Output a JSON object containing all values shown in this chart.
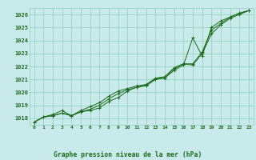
{
  "title": "Graphe pression niveau de la mer (hPa)",
  "x_values": [
    0,
    1,
    2,
    3,
    4,
    5,
    6,
    7,
    8,
    9,
    10,
    11,
    12,
    13,
    14,
    15,
    16,
    17,
    18,
    19,
    20,
    21,
    22,
    23
  ],
  "series": [
    [
      1017.7,
      1018.1,
      1018.2,
      1018.4,
      1018.2,
      1018.5,
      1018.6,
      1018.8,
      1019.3,
      1019.6,
      1020.1,
      1020.4,
      1020.5,
      1021.0,
      1021.1,
      1021.7,
      1022.1,
      1024.2,
      1022.8,
      1025.0,
      1025.5,
      1025.8,
      1026.1,
      1026.3
    ],
    [
      1017.7,
      1018.1,
      1018.2,
      1018.4,
      1018.2,
      1018.5,
      1018.7,
      1019.0,
      1019.5,
      1019.9,
      1020.2,
      1020.4,
      1020.6,
      1021.0,
      1021.2,
      1021.8,
      1022.2,
      1022.1,
      1023.0,
      1024.5,
      1025.2,
      1025.7,
      1026.0,
      1026.3
    ],
    [
      1017.7,
      1018.1,
      1018.3,
      1018.6,
      1018.2,
      1018.6,
      1018.9,
      1019.2,
      1019.7,
      1020.1,
      1020.3,
      1020.5,
      1020.6,
      1021.1,
      1021.2,
      1021.9,
      1022.2,
      1022.2,
      1023.1,
      1024.8,
      1025.3,
      1025.8,
      1026.1,
      1026.3
    ]
  ],
  "line_color": "#1a6b1a",
  "bg_color": "#c8eaea",
  "grid_color": "#90ccbb",
  "text_color": "#1a6b1a",
  "ylim": [
    1017.5,
    1026.5
  ],
  "yticks": [
    1018,
    1019,
    1020,
    1021,
    1022,
    1023,
    1024,
    1025,
    1026
  ],
  "xlim": [
    -0.5,
    23.5
  ],
  "xticks": [
    0,
    1,
    2,
    3,
    4,
    5,
    6,
    7,
    8,
    9,
    10,
    11,
    12,
    13,
    14,
    15,
    16,
    17,
    18,
    19,
    20,
    21,
    22,
    23
  ]
}
